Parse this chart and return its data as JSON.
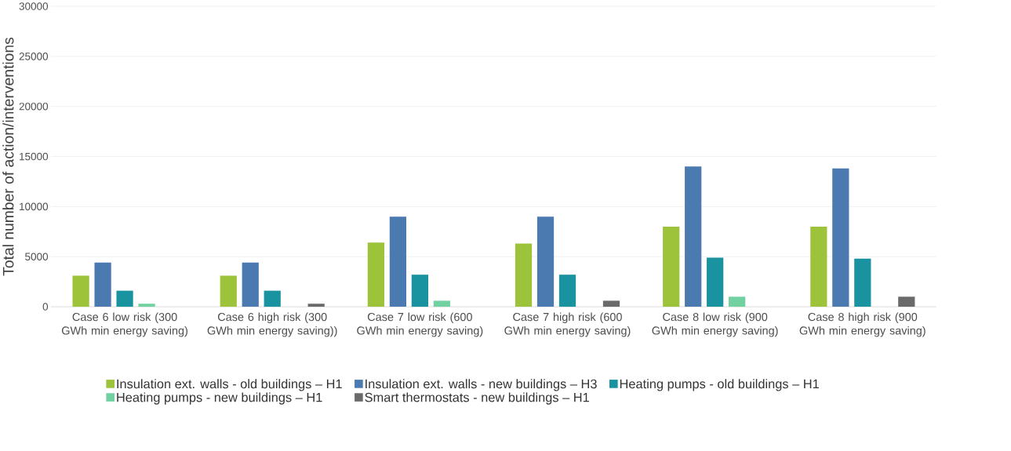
{
  "chart_data": {
    "type": "bar",
    "ylabel": "Total number of action/interventions",
    "categories": [
      "Case 6 low risk (300 GWh min energy saving)",
      "Case 6 high risk (300 GWh min energy saving))",
      "Case 7 low risk (600 GWh min energy saving)",
      "Case 7 high risk (600 GWh min energy saving)",
      "Case 8 low risk (900 GWh min energy saving)",
      "Case 8 high risk (900 GWh min energy saving)"
    ],
    "series": [
      {
        "name": "Insulation ext. walls - old buildings – H1",
        "color": "#9dc33b",
        "values": [
          3100,
          3100,
          6400,
          6300,
          8000,
          8000
        ]
      },
      {
        "name": "Insulation ext. walls - new buildings – H3",
        "color": "#4a7ab0",
        "values": [
          4400,
          4400,
          9000,
          9000,
          14000,
          13800
        ]
      },
      {
        "name": "Heating pumps - old buildings – H1",
        "color": "#1a93a0",
        "values": [
          1600,
          1600,
          3200,
          3200,
          4900,
          4800
        ]
      },
      {
        "name": "Heating pumps - new buildings – H1",
        "color": "#72d1a0",
        "values": [
          300,
          null,
          600,
          null,
          1000,
          null
        ]
      },
      {
        "name": "Smart thermostats - new buildings – H1",
        "color": "#6a6a6a",
        "values": [
          null,
          300,
          null,
          600,
          null,
          1000
        ]
      }
    ],
    "ylim": [
      0,
      30000
    ],
    "yticks": [
      0,
      5000,
      10000,
      15000,
      20000,
      25000,
      30000
    ],
    "grid": "y",
    "legend": "bottom"
  }
}
